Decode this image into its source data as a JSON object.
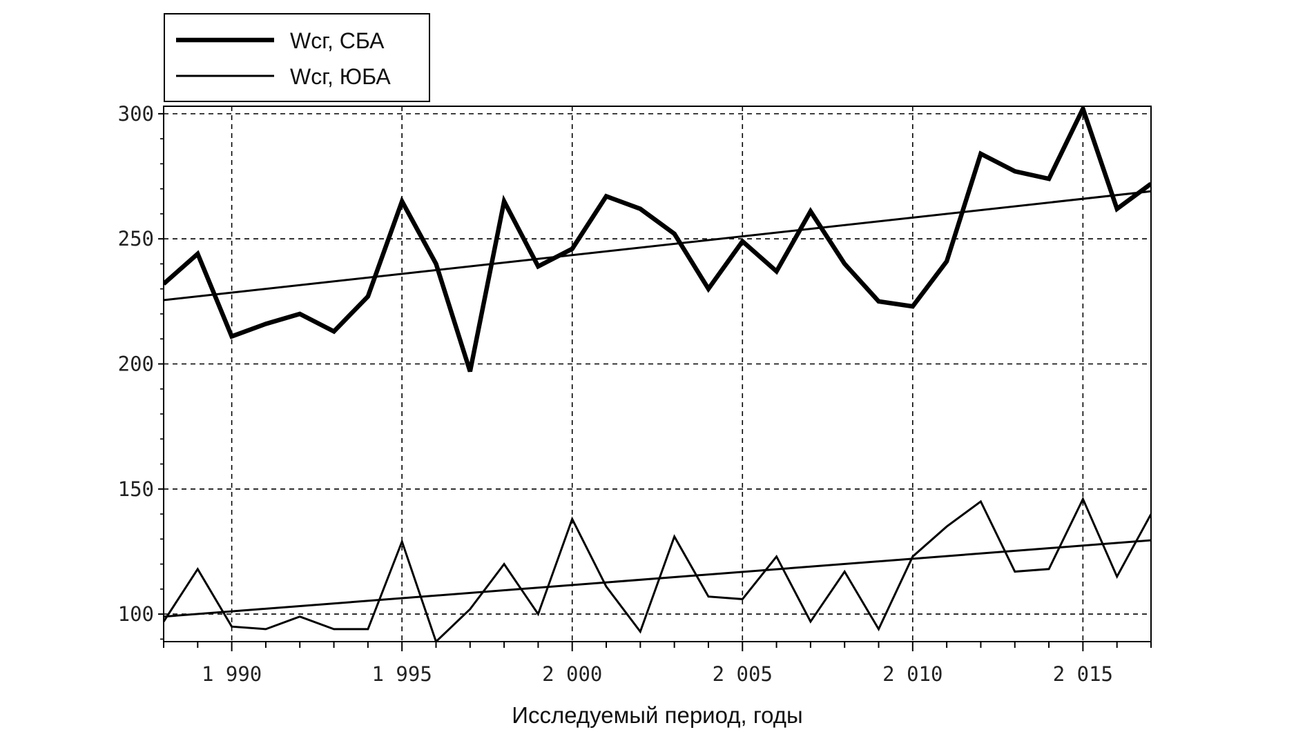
{
  "chart_data": {
    "type": "line",
    "title": "",
    "xlabel": "Исследуемый период, годы",
    "ylabel": "",
    "xlim": [
      1988,
      2017
    ],
    "ylim": [
      89,
      303
    ],
    "x_ticks": [
      1990,
      1995,
      2000,
      2005,
      2010,
      2015
    ],
    "x_tick_labels": [
      "1 990",
      "1 995",
      "2 000",
      "2 005",
      "2 010",
      "2 015"
    ],
    "y_ticks": [
      100,
      150,
      200,
      250,
      300
    ],
    "y_tick_labels": [
      "100",
      "150",
      "200",
      "250",
      "300"
    ],
    "grid": true,
    "legend_position": "top-left",
    "x": [
      1988,
      1989,
      1990,
      1991,
      1992,
      1993,
      1994,
      1995,
      1996,
      1997,
      1998,
      1999,
      2000,
      2001,
      2002,
      2003,
      2004,
      2005,
      2006,
      2007,
      2008,
      2009,
      2010,
      2011,
      2012,
      2013,
      2014,
      2015,
      2016,
      2017
    ],
    "series": [
      {
        "name": "Wсг, СБА",
        "style": "thick",
        "color": "#000000",
        "values": [
          232,
          244,
          211,
          216,
          220,
          213,
          227,
          265,
          240,
          197,
          265,
          239,
          246,
          267,
          262,
          252,
          230,
          249,
          237,
          261,
          240,
          225,
          223,
          241,
          284,
          277,
          274,
          302,
          262,
          272
        ]
      },
      {
        "name": "Wсг, ЮБА",
        "style": "thin",
        "color": "#000000",
        "values": [
          97,
          118,
          95,
          94,
          99,
          94,
          94,
          129,
          89,
          102,
          120,
          100,
          138,
          111,
          93,
          131,
          107,
          106,
          123,
          97,
          117,
          94,
          123,
          135,
          145,
          117,
          118,
          146,
          115,
          140
        ]
      }
    ],
    "trend_lines": [
      {
        "series": "Wсг, СБА",
        "start": [
          1988,
          225.5
        ],
        "end": [
          2017,
          269
        ]
      },
      {
        "series": "Wсг, ЮБА",
        "start": [
          1988,
          99
        ],
        "end": [
          2017,
          129.5
        ]
      }
    ]
  }
}
